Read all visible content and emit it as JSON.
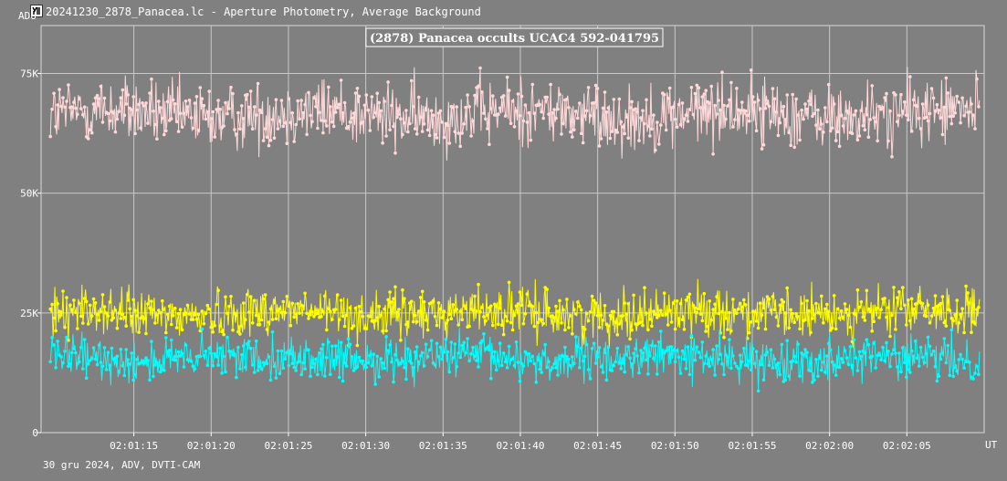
{
  "window": {
    "title": "20241230_2878_Panacea.lc - Aperture Photometry, Average Background",
    "icon": "light-curve-app-icon"
  },
  "footer": {
    "info": "30 gru 2024, ADV, DVTI-CAM"
  },
  "chart_data": {
    "type": "line",
    "title": "(2878) Panacea occults UCAC4 592-041795",
    "ylabel": "ADU",
    "xlabel": "UT",
    "x_start": "02:01:09",
    "x_end": "02:02:10",
    "ylim": [
      0,
      85000
    ],
    "yticks": [
      {
        "value": 0,
        "label": "0"
      },
      {
        "value": 25000,
        "label": "25K"
      },
      {
        "value": 50000,
        "label": "50K"
      },
      {
        "value": 75000,
        "label": "75K"
      }
    ],
    "xticks": [
      "02:01:15",
      "02:01:20",
      "02:01:25",
      "02:01:30",
      "02:01:35",
      "02:01:40",
      "02:01:45",
      "02:01:50",
      "02:01:55",
      "02:02:00",
      "02:02:05"
    ],
    "grid": true,
    "series": [
      {
        "color": "#ffd9d9",
        "mean": 66500,
        "scatter": 3500
      },
      {
        "color": "#ffff00",
        "mean": 25000,
        "scatter": 2500
      },
      {
        "color": "#00ffff",
        "mean": 15500,
        "scatter": 2200
      }
    ]
  }
}
